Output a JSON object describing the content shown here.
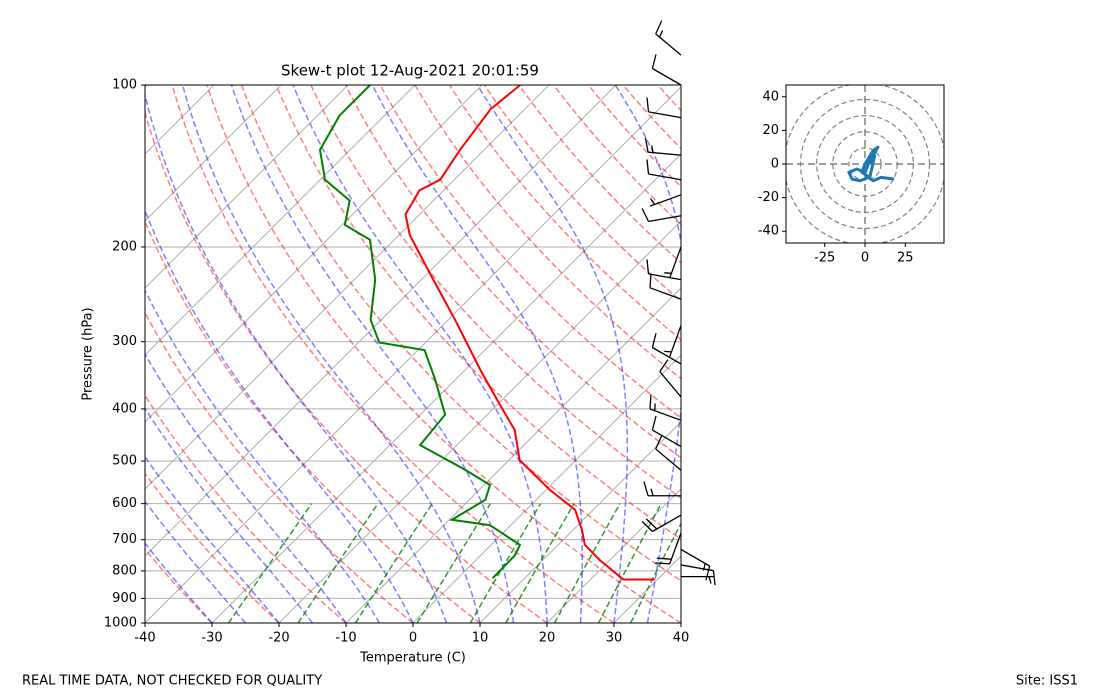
{
  "chart_data": [
    {
      "type": "skewt",
      "title": "Skew-t plot 12-Aug-2021 20:01:59",
      "xlabel": "Temperature (C)",
      "ylabel": "Pressure (hPa)",
      "xlim": [
        -40,
        40
      ],
      "xticks": [
        -40,
        -30,
        -20,
        -10,
        0,
        10,
        20,
        30,
        40
      ],
      "ylim": [
        1000,
        100
      ],
      "yticks": [
        100,
        200,
        300,
        400,
        500,
        600,
        700,
        800,
        900,
        1000
      ],
      "log_y": true,
      "grid": true,
      "series": [
        {
          "color": "#ff0000",
          "pressure": [
            830,
            830,
            764,
            716,
            671,
            616,
            566,
            498,
            438,
            393,
            338,
            273,
            225,
            190,
            174,
            157,
            150,
            132,
            111,
            100
          ],
          "values": [
            29.6,
            24.9,
            18.5,
            14.0,
            11.3,
            7.3,
            0.6,
            -8.4,
            -13.6,
            -19.6,
            -27.8,
            -39.0,
            -49.4,
            -58.4,
            -62.1,
            -63.6,
            -62.1,
            -63.6,
            -65.1,
            -64.3
          ]
        },
        {
          "color": "#008000",
          "pressure": [
            825,
            748,
            716,
            658,
            643,
            590,
            554,
            519,
            467,
            410,
            353,
            311,
            301,
            273,
            230,
            194,
            182,
            164,
            150,
            132,
            114,
            100
          ],
          "values": [
            5.2,
            5.1,
            4.3,
            -3.1,
            -9.6,
            -7.6,
            -9.1,
            -15.1,
            -25.5,
            -26.3,
            -33.0,
            -39.0,
            -46.9,
            -51.6,
            -56.9,
            -63.6,
            -69.6,
            -72.5,
            -79.3,
            -84.5,
            -86.7,
            -86.7
          ]
        }
      ],
      "wind": {
        "pressure": [
          88,
          100,
          115,
          135,
          150,
          160,
          175,
          200,
          230,
          250,
          280,
          330,
          380,
          420,
          470,
          520,
          580,
          630,
          680,
          730,
          780,
          820
        ],
        "speed": [
          15,
          10,
          10,
          15,
          10,
          5,
          10,
          5,
          10,
          10,
          5,
          10,
          10,
          15,
          10,
          10,
          15,
          20,
          20,
          15,
          10,
          5
        ],
        "direction": [
          310,
          300,
          280,
          275,
          280,
          250,
          260,
          200,
          280,
          290,
          200,
          300,
          320,
          290,
          300,
          310,
          270,
          240,
          200,
          120,
          100,
          90
        ]
      }
    },
    {
      "type": "hodograph",
      "xlim": [
        -49,
        49
      ],
      "ylim": [
        -47,
        47
      ],
      "xticks": [
        -25,
        0,
        25
      ],
      "yticks": [
        -40,
        -20,
        0,
        20,
        40
      ],
      "color": "#1f77b4",
      "x": [
        18,
        10,
        5,
        2,
        -3,
        -8,
        -10,
        -5,
        0,
        3,
        8,
        5,
        0,
        -2,
        3,
        6,
        3
      ],
      "values": [
        -9,
        -8,
        -10,
        -8,
        -10,
        -9,
        -5,
        -3,
        -5,
        2,
        10,
        8,
        0,
        -5,
        -8,
        5,
        0
      ]
    }
  ],
  "footer": {
    "left": "REAL TIME DATA, NOT CHECKED FOR QUALITY",
    "right": "Site: ISS1"
  }
}
